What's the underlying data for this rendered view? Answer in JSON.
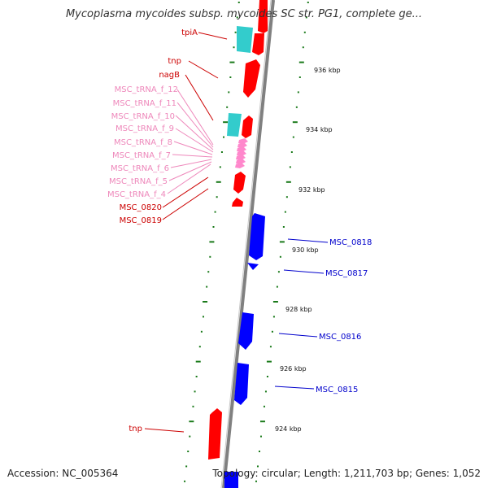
{
  "title": "Mycoplasma mycoides subsp. mycoides SC str. PG1, complete ge...",
  "accession_text": "Accession: NC_005364",
  "summary_text": "Topology: circular; Length: 1,211,703 bp; Genes: 1,052",
  "colors": {
    "backbone": "#808080",
    "forward_cds": "#ff0000",
    "reverse_cds": "#0000ff",
    "rrna": "#33cccc",
    "trna": "#ff88cc",
    "tick": "#1a7a1a",
    "forward_label": "#cc0000",
    "reverse_label": "#0000cc",
    "trna_label": "#ee88bb"
  },
  "scale_labels": [
    "936 kbp",
    "934 kbp",
    "932 kbp",
    "930 kbp",
    "928 kbp",
    "926 kbp",
    "924 kbp"
  ],
  "forward_labels": [
    "tpiA",
    "tnp",
    "nagB",
    "MSC_tRNA_f_12",
    "MSC_tRNA_f_11",
    "MSC_tRNA_f_10",
    "MSC_tRNA_f_9",
    "MSC_tRNA_f_8",
    "MSC_tRNA_f_7",
    "MSC_tRNA_f_6",
    "MSC_tRNA_f_5",
    "MSC_tRNA_f_4",
    "MSC_0820",
    "MSC_0819",
    "tnp"
  ],
  "reverse_labels": [
    "MSC_0818",
    "MSC_0817",
    "MSC_0816",
    "MSC_0815"
  ]
}
